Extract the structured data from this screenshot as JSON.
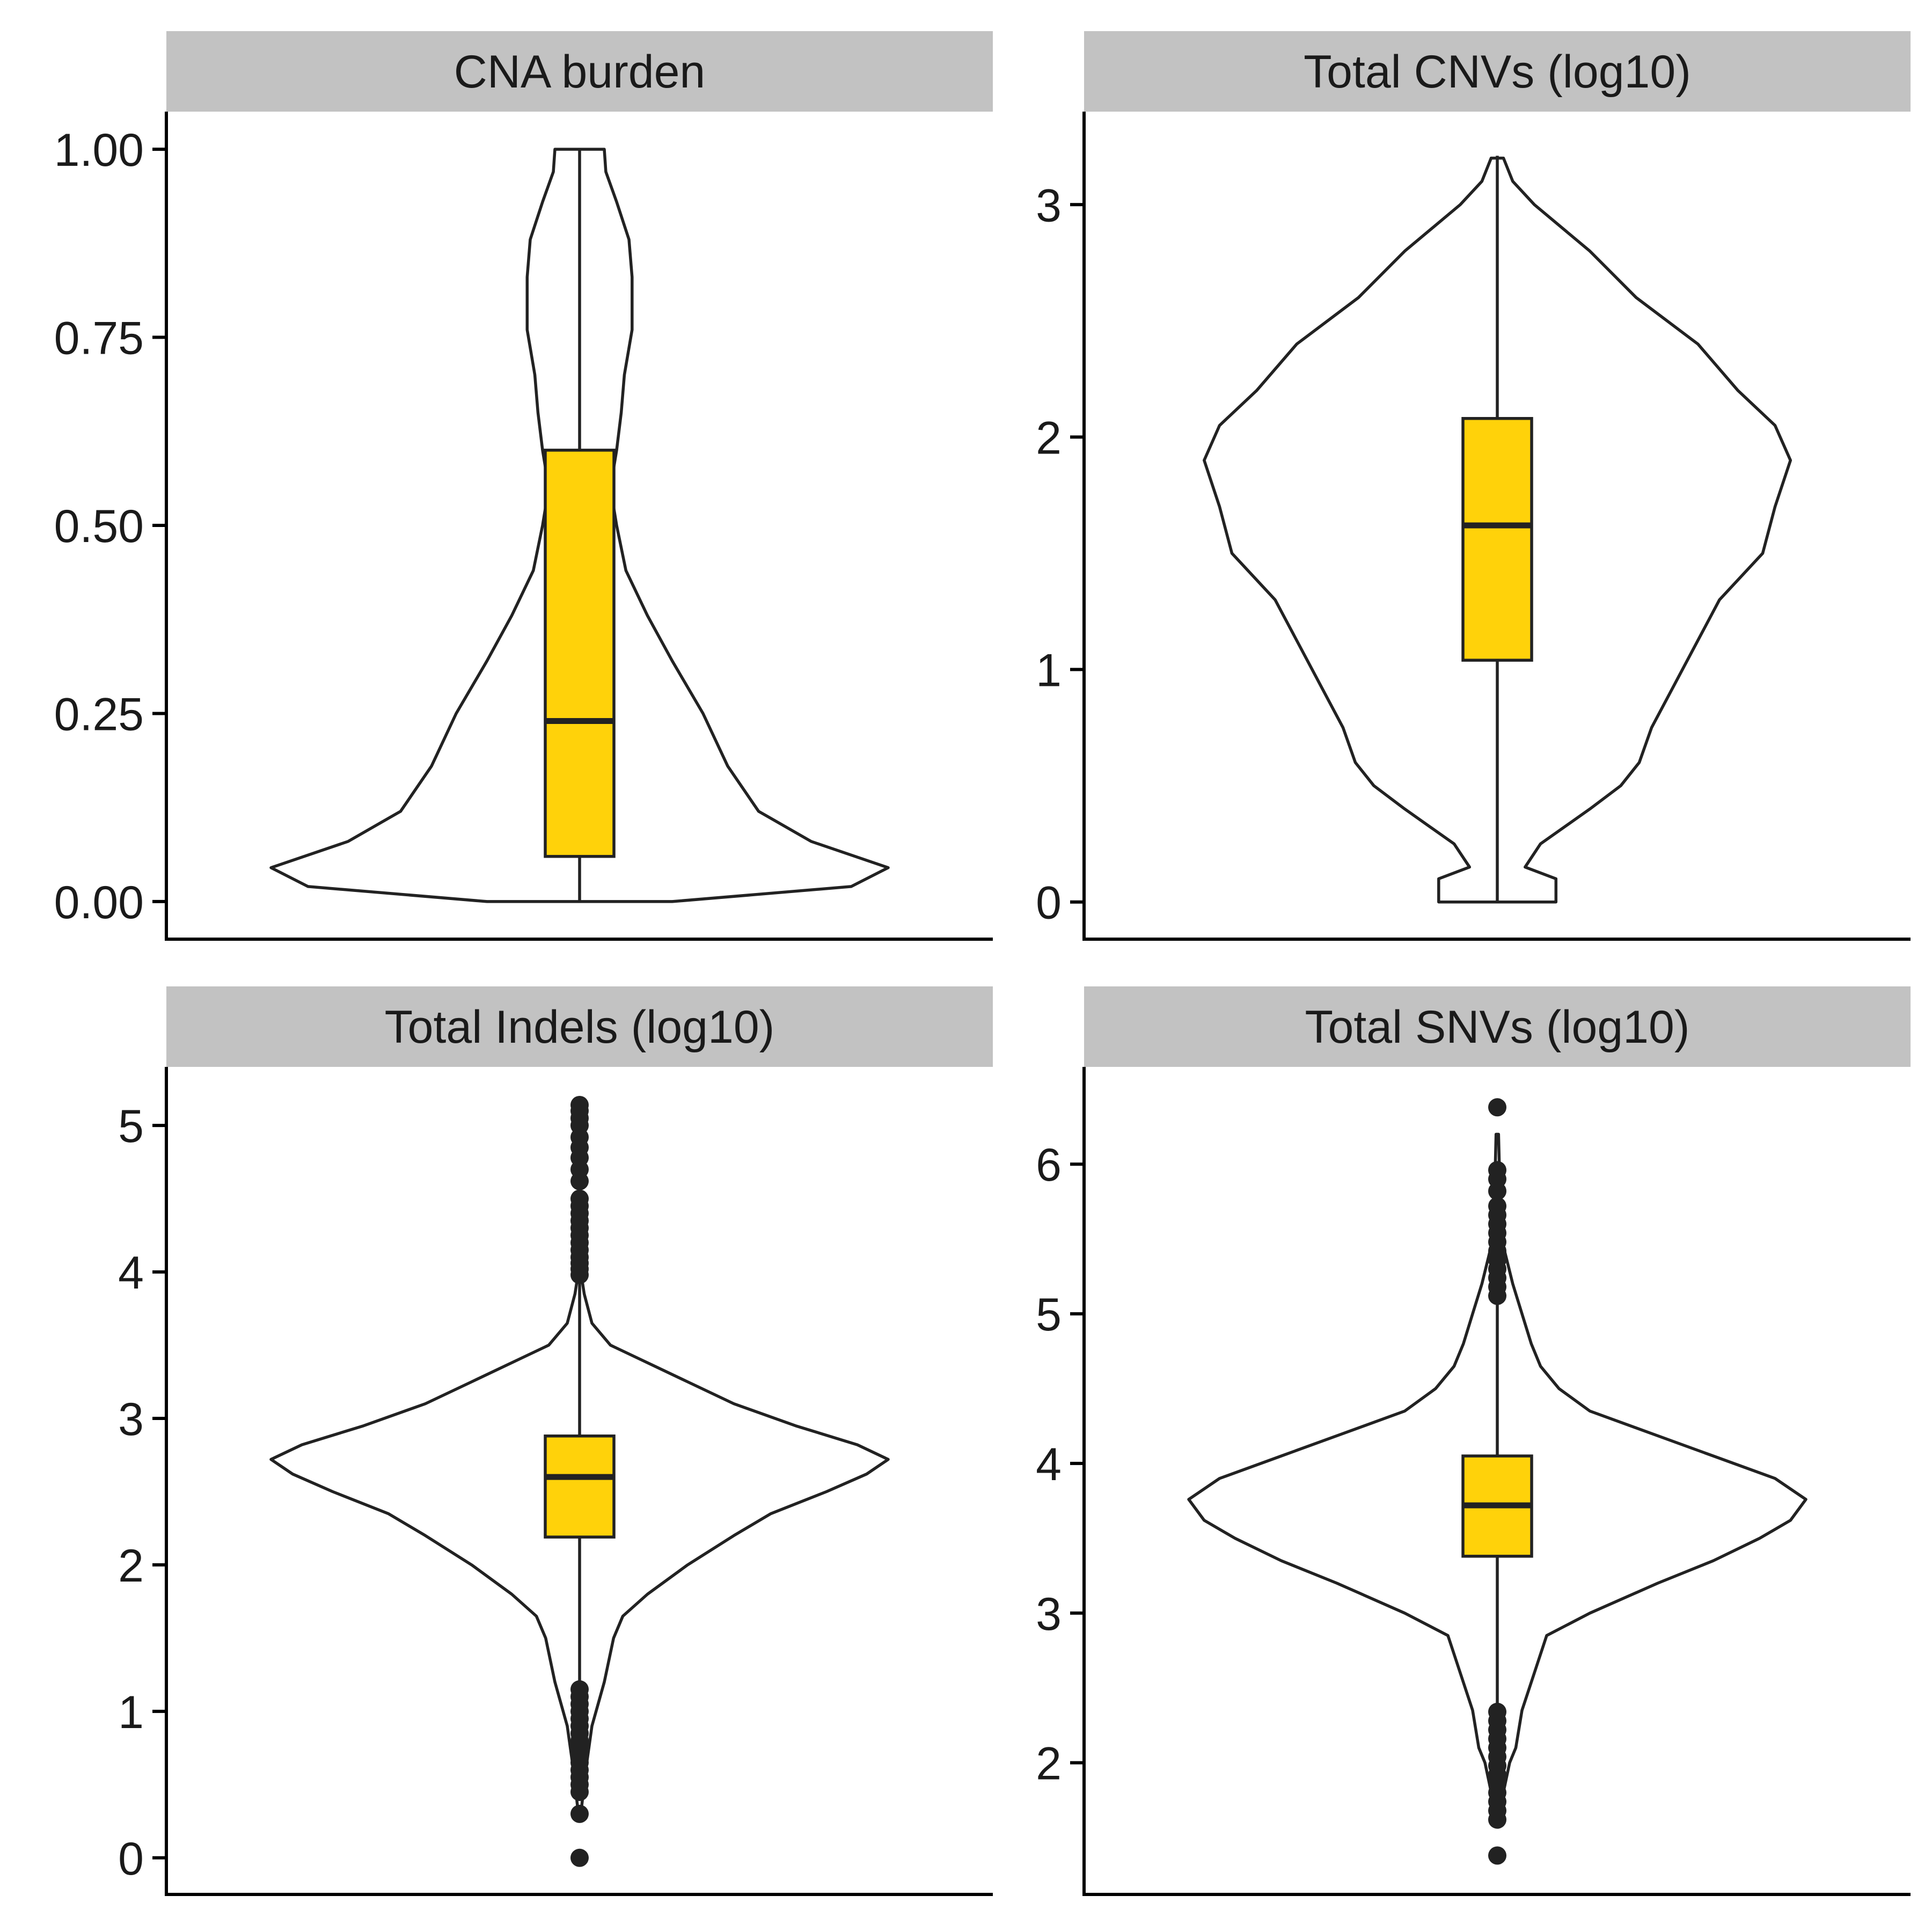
{
  "chart_data": [
    {
      "type": "violin",
      "title": "CNA burden",
      "ylim": [
        -0.05,
        1.05
      ],
      "yticks": [
        0,
        0.25,
        0.5,
        0.75,
        1
      ],
      "ytick_labels": [
        "0.00",
        "0.25",
        "0.50",
        "0.75",
        "1.00"
      ],
      "violin_profile": [
        [
          0,
          0.3
        ],
        [
          0.02,
          0.88
        ],
        [
          0.045,
          1.0
        ],
        [
          0.08,
          0.75
        ],
        [
          0.12,
          0.58
        ],
        [
          0.18,
          0.48
        ],
        [
          0.25,
          0.4
        ],
        [
          0.32,
          0.3
        ],
        [
          0.38,
          0.22
        ],
        [
          0.44,
          0.15
        ],
        [
          0.5,
          0.12
        ],
        [
          0.55,
          0.1
        ],
        [
          0.6,
          0.12
        ],
        [
          0.65,
          0.135
        ],
        [
          0.7,
          0.145
        ],
        [
          0.76,
          0.17
        ],
        [
          0.83,
          0.17
        ],
        [
          0.88,
          0.16
        ],
        [
          0.93,
          0.12
        ],
        [
          0.97,
          0.085
        ],
        [
          1.0,
          0.08
        ]
      ],
      "box": {
        "q1": 0.06,
        "median": 0.24,
        "q3": 0.6,
        "whisker_low": 0,
        "whisker_high": 1
      },
      "outliers": [],
      "fill": "#FFD20A",
      "line": "#222222"
    },
    {
      "type": "violin",
      "title": "Total CNVs (log10)",
      "ylim": [
        -0.16,
        3.4
      ],
      "yticks": [
        0,
        1,
        2,
        3
      ],
      "ytick_labels": [
        "0",
        "1",
        "2",
        "3"
      ],
      "violin_profile": [
        [
          0,
          0.19
        ],
        [
          0.1,
          0.19
        ],
        [
          0.15,
          0.09
        ],
        [
          0.25,
          0.14
        ],
        [
          0.4,
          0.3
        ],
        [
          0.5,
          0.4
        ],
        [
          0.6,
          0.46
        ],
        [
          0.75,
          0.5
        ],
        [
          0.95,
          0.58
        ],
        [
          1.15,
          0.66
        ],
        [
          1.3,
          0.72
        ],
        [
          1.5,
          0.86
        ],
        [
          1.7,
          0.9
        ],
        [
          1.9,
          0.95
        ],
        [
          2.05,
          0.9
        ],
        [
          2.2,
          0.78
        ],
        [
          2.4,
          0.65
        ],
        [
          2.6,
          0.45
        ],
        [
          2.8,
          0.3
        ],
        [
          3.0,
          0.12
        ],
        [
          3.1,
          0.05
        ],
        [
          3.2,
          0.02
        ]
      ],
      "box": {
        "q1": 1.04,
        "median": 1.62,
        "q3": 2.08,
        "whisker_low": 0,
        "whisker_high": 3.21
      },
      "outliers": [],
      "fill": "#FFD20A",
      "line": "#222222"
    },
    {
      "type": "violin",
      "title": "Total Indels (log10)",
      "ylim": [
        -0.25,
        5.4
      ],
      "yticks": [
        0,
        1,
        2,
        3,
        4,
        5
      ],
      "ytick_labels": [
        "0",
        "1",
        "2",
        "3",
        "4",
        "5"
      ],
      "violin_profile": [
        [
          0.3,
          0.004
        ],
        [
          0.6,
          0.02
        ],
        [
          0.9,
          0.04
        ],
        [
          1.2,
          0.08
        ],
        [
          1.5,
          0.11
        ],
        [
          1.65,
          0.14
        ],
        [
          1.8,
          0.22
        ],
        [
          2.0,
          0.35
        ],
        [
          2.2,
          0.5
        ],
        [
          2.35,
          0.62
        ],
        [
          2.5,
          0.8
        ],
        [
          2.62,
          0.93
        ],
        [
          2.72,
          1.0
        ],
        [
          2.82,
          0.9
        ],
        [
          2.95,
          0.7
        ],
        [
          3.1,
          0.5
        ],
        [
          3.25,
          0.35
        ],
        [
          3.4,
          0.2
        ],
        [
          3.5,
          0.1
        ],
        [
          3.65,
          0.04
        ],
        [
          3.85,
          0.015
        ],
        [
          4.0,
          0.004
        ]
      ],
      "box": {
        "q1": 2.19,
        "median": 2.6,
        "q3": 2.88,
        "whisker_low": 0.45,
        "whisker_high": 3.95
      },
      "outliers": [
        0,
        0.3,
        0.45,
        0.5,
        0.55,
        0.6,
        0.65,
        0.7,
        0.75,
        0.8,
        0.85,
        0.9,
        0.95,
        1.0,
        1.05,
        1.1,
        1.15,
        3.98,
        4.02,
        4.06,
        4.1,
        4.15,
        4.2,
        4.25,
        4.3,
        4.35,
        4.4,
        4.45,
        4.5,
        4.62,
        4.7,
        4.78,
        4.85,
        4.92,
        5.0,
        5.05,
        5.1,
        5.14
      ],
      "fill": "#FFD20A",
      "line": "#222222"
    },
    {
      "type": "violin",
      "title": "Total SNVs (log10)",
      "ylim": [
        1.12,
        6.65
      ],
      "yticks": [
        2,
        3,
        4,
        5,
        6
      ],
      "ytick_labels": [
        "2",
        "3",
        "4",
        "5",
        "6"
      ],
      "violin_profile": [
        [
          1.65,
          0.004
        ],
        [
          2.0,
          0.04
        ],
        [
          2.1,
          0.06
        ],
        [
          2.35,
          0.08
        ],
        [
          2.6,
          0.12
        ],
        [
          2.85,
          0.16
        ],
        [
          3.0,
          0.3
        ],
        [
          3.2,
          0.52
        ],
        [
          3.35,
          0.7
        ],
        [
          3.5,
          0.85
        ],
        [
          3.62,
          0.95
        ],
        [
          3.76,
          1.0
        ],
        [
          3.9,
          0.9
        ],
        [
          4.05,
          0.7
        ],
        [
          4.2,
          0.5
        ],
        [
          4.35,
          0.3
        ],
        [
          4.5,
          0.2
        ],
        [
          4.65,
          0.14
        ],
        [
          4.8,
          0.11
        ],
        [
          5.0,
          0.08
        ],
        [
          5.2,
          0.05
        ],
        [
          5.45,
          0.02
        ],
        [
          5.7,
          0.01
        ],
        [
          6.2,
          0.004
        ]
      ],
      "box": {
        "q1": 3.38,
        "median": 3.72,
        "q3": 4.05,
        "whisker_low": 2.35,
        "whisker_high": 5.1
      },
      "outliers": [
        1.38,
        1.62,
        1.68,
        1.74,
        1.8,
        1.86,
        1.92,
        1.98,
        2.04,
        2.1,
        2.16,
        2.22,
        2.28,
        2.34,
        5.12,
        5.18,
        5.24,
        5.3,
        5.36,
        5.42,
        5.48,
        5.54,
        5.6,
        5.66,
        5.72,
        5.82,
        5.9,
        5.96,
        6.38
      ],
      "fill": "#FFD20A",
      "line": "#222222"
    }
  ]
}
